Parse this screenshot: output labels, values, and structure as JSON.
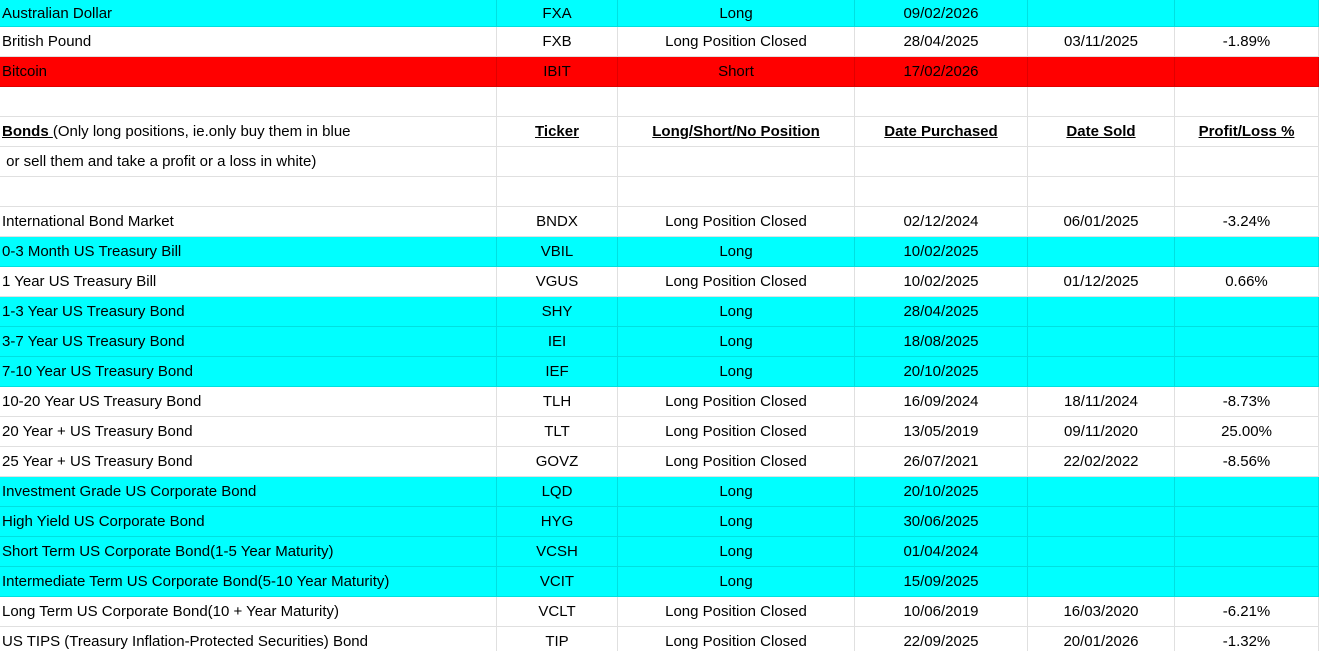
{
  "columns": [
    "",
    "Ticker",
    "Long/Short/No Position",
    "Date Purchased",
    "Date Sold",
    "Profit/Loss %"
  ],
  "legend": {
    "note_line1_lead": "Bonds ",
    "note_line1_rest": "(Only long positions, ie.only buy them in blue",
    "note_line2": " or sell them and take a profit or a loss in white)"
  },
  "colors": {
    "open_long_row": "#00ffff",
    "open_short_row": "#ff0000",
    "closed_row": "#ffffff",
    "gridline_on_white": "#e0e0e0"
  },
  "rows": [
    {
      "type": "data",
      "bg": "cyan",
      "name": "Australian Dollar",
      "ticker": "FXA",
      "position": "Long",
      "date_purchased": "09/02/2026",
      "date_sold": "",
      "profit_loss": ""
    },
    {
      "type": "data",
      "bg": "white",
      "name": "British Pound",
      "ticker": "FXB",
      "position": "Long Position Closed",
      "date_purchased": "28/04/2025",
      "date_sold": "03/11/2025",
      "profit_loss": "-1.89%"
    },
    {
      "type": "data",
      "bg": "red",
      "name": "Bitcoin",
      "ticker": "IBIT",
      "position": "Short",
      "date_purchased": "17/02/2026",
      "date_sold": "",
      "profit_loss": ""
    },
    {
      "type": "blank",
      "bg": "white"
    },
    {
      "type": "header",
      "bg": "white"
    },
    {
      "type": "note",
      "bg": "white"
    },
    {
      "type": "blank",
      "bg": "white"
    },
    {
      "type": "data",
      "bg": "white",
      "name": "International Bond Market",
      "ticker": "BNDX",
      "position": "Long Position Closed",
      "date_purchased": "02/12/2024",
      "date_sold": "06/01/2025",
      "profit_loss": "-3.24%"
    },
    {
      "type": "data",
      "bg": "cyan",
      "name": "0-3 Month US Treasury Bill",
      "ticker": "VBIL",
      "position": "Long",
      "date_purchased": "10/02/2025",
      "date_sold": "",
      "profit_loss": ""
    },
    {
      "type": "data",
      "bg": "white",
      "name": "1 Year US Treasury Bill",
      "ticker": "VGUS",
      "position": "Long Position Closed",
      "date_purchased": "10/02/2025",
      "date_sold": "01/12/2025",
      "profit_loss": "0.66%"
    },
    {
      "type": "data",
      "bg": "cyan",
      "name": "1-3 Year US Treasury Bond",
      "ticker": "SHY",
      "position": "Long",
      "date_purchased": "28/04/2025",
      "date_sold": "",
      "profit_loss": ""
    },
    {
      "type": "data",
      "bg": "cyan",
      "name": "3-7 Year US Treasury Bond",
      "ticker": "IEI",
      "position": "Long",
      "date_purchased": "18/08/2025",
      "date_sold": "",
      "profit_loss": ""
    },
    {
      "type": "data",
      "bg": "cyan",
      "name": "7-10 Year US Treasury Bond",
      "ticker": "IEF",
      "position": "Long",
      "date_purchased": "20/10/2025",
      "date_sold": "",
      "profit_loss": ""
    },
    {
      "type": "data",
      "bg": "white",
      "name": "10-20 Year US Treasury Bond",
      "ticker": "TLH",
      "position": "Long Position Closed",
      "date_purchased": "16/09/2024",
      "date_sold": "18/11/2024",
      "profit_loss": "-8.73%"
    },
    {
      "type": "data",
      "bg": "white",
      "name": "20 Year + US Treasury Bond",
      "ticker": "TLT",
      "position": "Long Position Closed",
      "date_purchased": "13/05/2019",
      "date_sold": "09/11/2020",
      "profit_loss": "25.00%"
    },
    {
      "type": "data",
      "bg": "white",
      "name": "25 Year + US Treasury Bond",
      "ticker": "GOVZ",
      "position": "Long Position Closed",
      "date_purchased": "26/07/2021",
      "date_sold": "22/02/2022",
      "profit_loss": "-8.56%"
    },
    {
      "type": "data",
      "bg": "cyan",
      "name": "Investment Grade US Corporate Bond",
      "ticker": "LQD",
      "position": "Long",
      "date_purchased": "20/10/2025",
      "date_sold": "",
      "profit_loss": ""
    },
    {
      "type": "data",
      "bg": "cyan",
      "name": "High Yield US Corporate Bond",
      "ticker": "HYG",
      "position": "Long",
      "date_purchased": "30/06/2025",
      "date_sold": "",
      "profit_loss": ""
    },
    {
      "type": "data",
      "bg": "cyan",
      "name": "Short Term US Corporate Bond(1-5 Year Maturity)",
      "ticker": "VCSH",
      "position": "Long",
      "date_purchased": "01/04/2024",
      "date_sold": "",
      "profit_loss": ""
    },
    {
      "type": "data",
      "bg": "cyan",
      "name": "Intermediate Term US Corporate Bond(5-10 Year Maturity)",
      "ticker": "VCIT",
      "position": "Long",
      "date_purchased": "15/09/2025",
      "date_sold": "",
      "profit_loss": ""
    },
    {
      "type": "data",
      "bg": "white",
      "name": "Long Term US Corporate Bond(10 + Year Maturity)",
      "ticker": "VCLT",
      "position": "Long Position Closed",
      "date_purchased": "10/06/2019",
      "date_sold": "16/03/2020",
      "profit_loss": "-6.21%"
    },
    {
      "type": "data",
      "bg": "white",
      "name": "US TIPS (Treasury Inflation-Protected Securities) Bond",
      "ticker": "TIP",
      "position": "Long Position Closed",
      "date_purchased": "22/09/2025",
      "date_sold": "20/01/2026",
      "profit_loss": "-1.32%"
    }
  ]
}
